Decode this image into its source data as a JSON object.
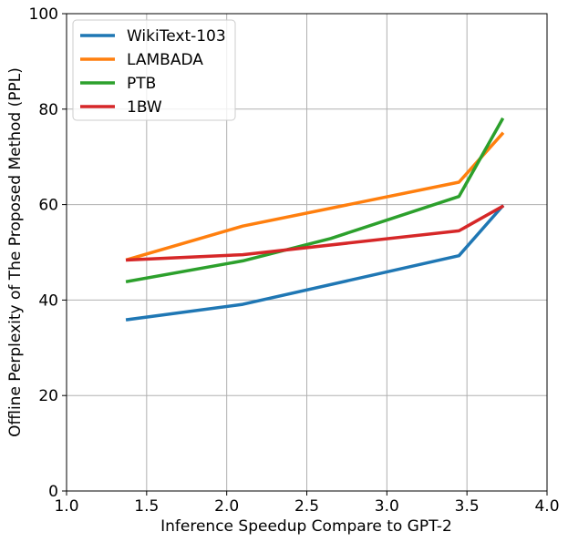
{
  "chart_data": {
    "type": "line",
    "title": "",
    "xlabel": "Inference Speedup Compare to GPT-2",
    "ylabel": "Offline Perplexity of The Proposed Method (PPL)",
    "xlim": [
      1.0,
      4.0
    ],
    "ylim": [
      0,
      100
    ],
    "xticks": [
      "1.0",
      "1.5",
      "2.0",
      "2.5",
      "3.0",
      "3.5",
      "4.0"
    ],
    "yticks": [
      "0",
      "20",
      "40",
      "60",
      "80",
      "100"
    ],
    "xtick_values": [
      1.0,
      1.5,
      2.0,
      2.5,
      3.0,
      3.5,
      4.0
    ],
    "ytick_values": [
      0,
      20,
      40,
      60,
      80,
      100
    ],
    "grid": true,
    "legend_position": "top-left",
    "series": [
      {
        "name": "WikiText-103",
        "color": "#1f77b4",
        "x": [
          1.38,
          2.1,
          3.45,
          3.72
        ],
        "y": [
          35.9,
          39.1,
          49.3,
          59.6
        ]
      },
      {
        "name": "LAMBADA",
        "color": "#ff7f0e",
        "x": [
          1.38,
          2.1,
          3.45,
          3.72
        ],
        "y": [
          48.5,
          55.5,
          64.7,
          74.8
        ]
      },
      {
        "name": "PTB",
        "color": "#2ca02c",
        "x": [
          1.38,
          2.1,
          2.65,
          3.45,
          3.72
        ],
        "y": [
          43.9,
          48.2,
          52.9,
          61.7,
          77.8
        ]
      },
      {
        "name": "1BW",
        "color": "#d62728",
        "x": [
          1.38,
          2.1,
          3.45,
          3.72
        ],
        "y": [
          48.4,
          49.5,
          54.5,
          59.6
        ]
      }
    ]
  }
}
